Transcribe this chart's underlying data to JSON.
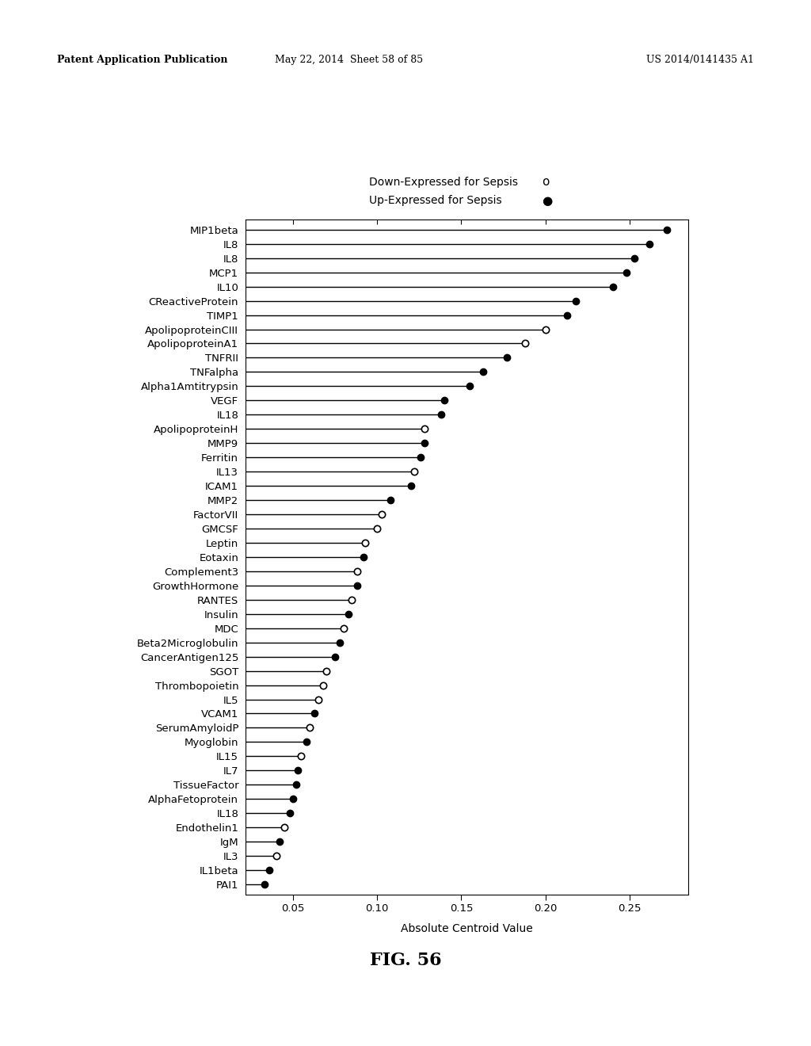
{
  "categories": [
    "MIP1beta",
    "IL8",
    "IL8",
    "MCP1",
    "IL10",
    "CReactiveProtein",
    "TIMP1",
    "ApolipoproteinCIII",
    "ApolipoproteinA1",
    "TNFRII",
    "TNFalpha",
    "Alpha1Amtitrypsin",
    "VEGF",
    "IL18",
    "ApolipoproteinH",
    "MMP9",
    "Ferritin",
    "IL13",
    "ICAM1",
    "MMP2",
    "FactorVII",
    "GMCSF",
    "Leptin",
    "Eotaxin",
    "Complement3",
    "GrowthHormone",
    "RANTES",
    "Insulin",
    "MDC",
    "Beta2Microglobulin",
    "CancerAntigen125",
    "SGOT",
    "Thrombopoietin",
    "IL5",
    "VCAM1",
    "SerumAmyloidP",
    "Myoglobin",
    "IL15",
    "IL7",
    "TissueFactor",
    "AlphaFetoprotein",
    "IL18",
    "Endothelin1",
    "IgM",
    "IL3",
    "IL1beta",
    "PAI1"
  ],
  "values": [
    0.272,
    0.262,
    0.253,
    0.248,
    0.24,
    0.218,
    0.213,
    0.2,
    0.188,
    0.177,
    0.163,
    0.155,
    0.14,
    0.138,
    0.128,
    0.128,
    0.126,
    0.122,
    0.12,
    0.108,
    0.103,
    0.1,
    0.093,
    0.092,
    0.088,
    0.088,
    0.085,
    0.083,
    0.08,
    0.078,
    0.075,
    0.07,
    0.068,
    0.065,
    0.063,
    0.06,
    0.058,
    0.055,
    0.053,
    0.052,
    0.05,
    0.048,
    0.045,
    0.042,
    0.04,
    0.036,
    0.033
  ],
  "marker_types": [
    "filled",
    "filled",
    "filled",
    "filled",
    "filled",
    "filled",
    "filled",
    "open",
    "open",
    "filled",
    "filled",
    "filled",
    "filled",
    "filled",
    "open",
    "filled",
    "filled",
    "open",
    "filled",
    "filled",
    "open",
    "open",
    "open",
    "filled",
    "open",
    "filled",
    "open",
    "filled",
    "open",
    "filled",
    "filled",
    "open",
    "open",
    "open",
    "filled",
    "open",
    "filled",
    "open",
    "filled",
    "filled",
    "filled",
    "filled",
    "open",
    "filled",
    "open",
    "filled",
    "filled"
  ],
  "xlabel": "Absolute Centroid Value",
  "fig_label": "FIG. 56",
  "legend_down": "Down-Expressed for Sepsis",
  "legend_up": "Up-Expressed for Sepsis",
  "xlim_left": 0.022,
  "xlim_right": 0.285,
  "xticks": [
    0.05,
    0.1,
    0.15,
    0.2,
    0.25
  ],
  "header_left": "Patent Application Publication",
  "header_mid": "May 22, 2014  Sheet 58 of 85",
  "header_right": "US 2014/0141435 A1",
  "line_color": "#000000",
  "filled_color": "#000000",
  "open_facecolor": "#ffffff",
  "open_edgecolor": "#000000",
  "marker_size": 6,
  "line_width": 1.0,
  "font_size_yticks": 9.5,
  "font_size_xticks": 9.5,
  "font_size_xlabel": 10,
  "font_size_legend": 10,
  "font_size_header": 9,
  "font_size_figlabel": 16
}
